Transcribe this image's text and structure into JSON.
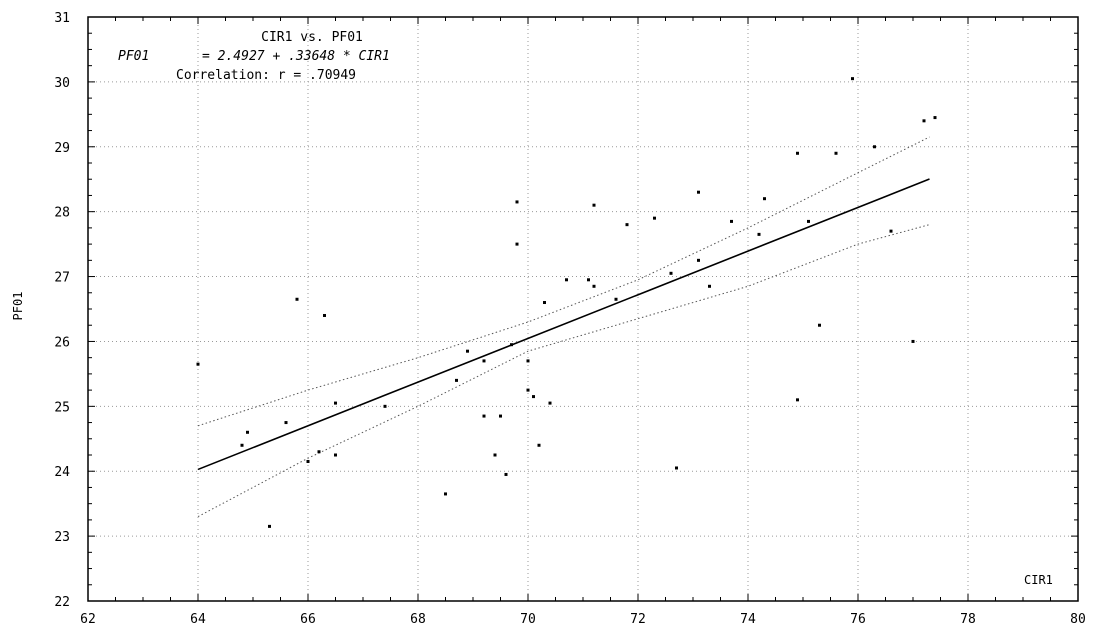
{
  "chart_data": {
    "type": "scatter",
    "title": "CIR1 vs. PF01",
    "equation_lhs": "PF01",
    "equation_rhs": "= 2.4927 + .33648 * CIR1",
    "correlation": "Correlation: r = .70949",
    "xlabel": "CIR1",
    "ylabel": "PF01",
    "xlim": [
      62,
      80
    ],
    "ylim": [
      22,
      31
    ],
    "xticks": [
      62,
      64,
      66,
      68,
      70,
      72,
      74,
      76,
      78,
      80
    ],
    "yticks": [
      22,
      23,
      24,
      25,
      26,
      27,
      28,
      29,
      30,
      31
    ],
    "grid": true,
    "regression": {
      "intercept": 2.4927,
      "slope": 0.33648,
      "x_range": [
        64,
        77.3
      ]
    },
    "confidence_band": {
      "x": [
        64,
        66,
        68,
        70,
        72,
        74,
        76,
        77.3
      ],
      "upper": [
        24.7,
        25.25,
        25.75,
        26.3,
        26.95,
        27.75,
        28.6,
        29.15
      ],
      "lower": [
        23.3,
        24.2,
        25.0,
        25.85,
        26.35,
        26.85,
        27.5,
        27.8
      ]
    },
    "points": [
      {
        "x": 64.0,
        "y": 25.65
      },
      {
        "x": 64.8,
        "y": 24.4
      },
      {
        "x": 64.9,
        "y": 24.6
      },
      {
        "x": 65.3,
        "y": 23.15
      },
      {
        "x": 65.6,
        "y": 24.75
      },
      {
        "x": 65.8,
        "y": 26.65
      },
      {
        "x": 66.0,
        "y": 24.15
      },
      {
        "x": 66.2,
        "y": 24.3
      },
      {
        "x": 66.3,
        "y": 26.4
      },
      {
        "x": 66.5,
        "y": 24.25
      },
      {
        "x": 66.5,
        "y": 25.05
      },
      {
        "x": 67.4,
        "y": 25.0
      },
      {
        "x": 68.5,
        "y": 23.65
      },
      {
        "x": 68.7,
        "y": 25.4
      },
      {
        "x": 68.9,
        "y": 25.85
      },
      {
        "x": 69.2,
        "y": 24.85
      },
      {
        "x": 69.2,
        "y": 25.7
      },
      {
        "x": 69.4,
        "y": 24.25
      },
      {
        "x": 69.5,
        "y": 24.85
      },
      {
        "x": 69.6,
        "y": 23.95
      },
      {
        "x": 69.7,
        "y": 25.95
      },
      {
        "x": 69.8,
        "y": 27.5
      },
      {
        "x": 69.8,
        "y": 28.15
      },
      {
        "x": 70.0,
        "y": 25.25
      },
      {
        "x": 70.0,
        "y": 25.7
      },
      {
        "x": 70.1,
        "y": 25.15
      },
      {
        "x": 70.2,
        "y": 24.4
      },
      {
        "x": 70.3,
        "y": 26.6
      },
      {
        "x": 70.4,
        "y": 25.05
      },
      {
        "x": 70.7,
        "y": 26.95
      },
      {
        "x": 71.1,
        "y": 26.95
      },
      {
        "x": 71.2,
        "y": 26.85
      },
      {
        "x": 71.2,
        "y": 28.1
      },
      {
        "x": 71.6,
        "y": 26.65
      },
      {
        "x": 71.8,
        "y": 27.8
      },
      {
        "x": 72.3,
        "y": 27.9
      },
      {
        "x": 72.6,
        "y": 27.05
      },
      {
        "x": 72.7,
        "y": 24.05
      },
      {
        "x": 73.1,
        "y": 27.25
      },
      {
        "x": 73.1,
        "y": 28.3
      },
      {
        "x": 73.3,
        "y": 26.85
      },
      {
        "x": 73.7,
        "y": 27.85
      },
      {
        "x": 74.2,
        "y": 27.65
      },
      {
        "x": 74.3,
        "y": 28.2
      },
      {
        "x": 74.9,
        "y": 28.9
      },
      {
        "x": 74.9,
        "y": 25.1
      },
      {
        "x": 75.1,
        "y": 27.85
      },
      {
        "x": 75.3,
        "y": 26.25
      },
      {
        "x": 75.6,
        "y": 28.9
      },
      {
        "x": 75.9,
        "y": 30.05
      },
      {
        "x": 76.3,
        "y": 29.0
      },
      {
        "x": 76.6,
        "y": 27.7
      },
      {
        "x": 77.0,
        "y": 26.0
      },
      {
        "x": 77.2,
        "y": 29.4
      },
      {
        "x": 77.4,
        "y": 29.45
      }
    ]
  }
}
